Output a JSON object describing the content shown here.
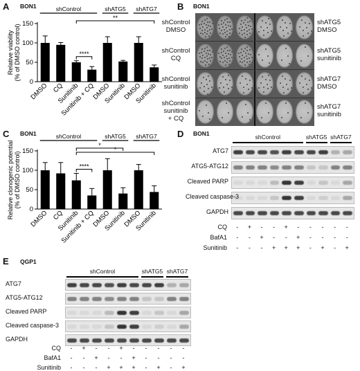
{
  "panels": {
    "A": {
      "letter": "A",
      "cell": "BON1"
    },
    "B": {
      "letter": "B",
      "cell": "BON1"
    },
    "C": {
      "letter": "C",
      "cell": "BON1"
    },
    "D": {
      "letter": "D",
      "cell": "BON1"
    },
    "E": {
      "letter": "E",
      "cell": "QGP1"
    }
  },
  "chart_data": [
    {
      "panel": "A",
      "type": "bar",
      "ylabel": "Relative viability\n(% of DMSO control)",
      "ylim": [
        0,
        150
      ],
      "yticks": [
        0,
        50,
        100,
        150
      ],
      "categories": [
        "DMSO",
        "CQ",
        "Sunitinib",
        "Sunitinib + CQ",
        "DMSO",
        "Sunitinib",
        "DMSO",
        "Sunitinib"
      ],
      "values": [
        100,
        95,
        50,
        31,
        100,
        52,
        100,
        37
      ],
      "errors": [
        18,
        6,
        4,
        8,
        16,
        3,
        16,
        6
      ],
      "groups": [
        {
          "label": "shControl",
          "from": 0,
          "to": 3
        },
        {
          "label": "shATG5",
          "from": 4,
          "to": 5
        },
        {
          "label": "shATG7",
          "from": 6,
          "to": 7
        }
      ],
      "significance": [
        {
          "from": 2,
          "to": 3,
          "label": "****"
        },
        {
          "from": 2,
          "to": 7,
          "label": "**"
        }
      ]
    },
    {
      "panel": "C",
      "type": "bar",
      "ylabel": "Relative clonogenic potential\n(% of DMSO control)",
      "ylim": [
        0,
        150
      ],
      "yticks": [
        0,
        50,
        100,
        150
      ],
      "categories": [
        "DMSO",
        "CQ",
        "Sunitinib",
        "Sunitinib + CQ",
        "DMSO",
        "Sunitinib",
        "DMSO",
        "Sunitinib"
      ],
      "values": [
        100,
        92,
        74,
        35,
        100,
        40,
        100,
        44
      ],
      "errors": [
        20,
        28,
        18,
        18,
        30,
        15,
        15,
        16
      ],
      "groups": [
        {
          "label": "shControl",
          "from": 0,
          "to": 3
        },
        {
          "label": "shATG5",
          "from": 4,
          "to": 5
        },
        {
          "label": "shATG7",
          "from": 6,
          "to": 7
        }
      ],
      "significance": [
        {
          "from": 2,
          "to": 3,
          "label": "****"
        },
        {
          "from": 2,
          "to": 5,
          "label": "*"
        },
        {
          "from": 2,
          "to": 7,
          "label": "*"
        }
      ]
    }
  ],
  "dishes": {
    "left": [
      {
        "line1": "shControl",
        "line2": "DMSO",
        "line3": ""
      },
      {
        "line1": "shControl",
        "line2": "CQ",
        "line3": ""
      },
      {
        "line1": "shControl",
        "line2": "sunitinib",
        "line3": ""
      },
      {
        "line1": "shControl",
        "line2": "sunitinib",
        "line3": "+ CQ"
      }
    ],
    "right": [
      {
        "line1": "shATG5",
        "line2": "DMSO",
        "line3": ""
      },
      {
        "line1": "shATG5",
        "line2": "sunitinib",
        "line3": ""
      },
      {
        "line1": "shATG7",
        "line2": "DMSO",
        "line3": ""
      },
      {
        "line1": "shATG7",
        "line2": "sunitinib",
        "line3": ""
      }
    ]
  },
  "blotD": {
    "groups": [
      "shControl",
      "shATG5",
      "shATG7"
    ],
    "rows": [
      "ATG7",
      "ATG5-ATG12",
      "Cleaved PARP",
      "Cleaved caspase-3",
      "GAPDH"
    ],
    "treatments": [
      {
        "label": "CQ",
        "signs": [
          "-",
          "+",
          "-",
          "-",
          "+",
          "-",
          "-",
          "-",
          "-",
          "-"
        ]
      },
      {
        "label": "BafA1",
        "signs": [
          "-",
          "-",
          "+",
          "-",
          "-",
          "+",
          "-",
          "-",
          "-",
          "-"
        ]
      },
      {
        "label": "Sunitinib",
        "signs": [
          "-",
          "-",
          "-",
          "+",
          "+",
          "+",
          "-",
          "+",
          "-",
          "+"
        ]
      }
    ]
  },
  "blotE": {
    "groups": [
      "shControl",
      "shATG5",
      "shATG7"
    ],
    "rows": [
      "ATG7",
      "ATG5-ATG12",
      "Cleaved PARP",
      "Cleaved caspase-3",
      "GAPDH"
    ],
    "treatments": [
      {
        "label": "CQ",
        "signs": [
          "-",
          "+",
          "-",
          "-",
          "+",
          "-",
          "-",
          "-",
          "-",
          "-"
        ]
      },
      {
        "label": "BafA1",
        "signs": [
          "-",
          "-",
          "+",
          "-",
          "-",
          "+",
          "-",
          "-",
          "-",
          "-"
        ]
      },
      {
        "label": "Sunitinib",
        "signs": [
          "-",
          "-",
          "-",
          "+",
          "+",
          "+",
          "-",
          "+",
          "-",
          "+"
        ]
      }
    ]
  }
}
